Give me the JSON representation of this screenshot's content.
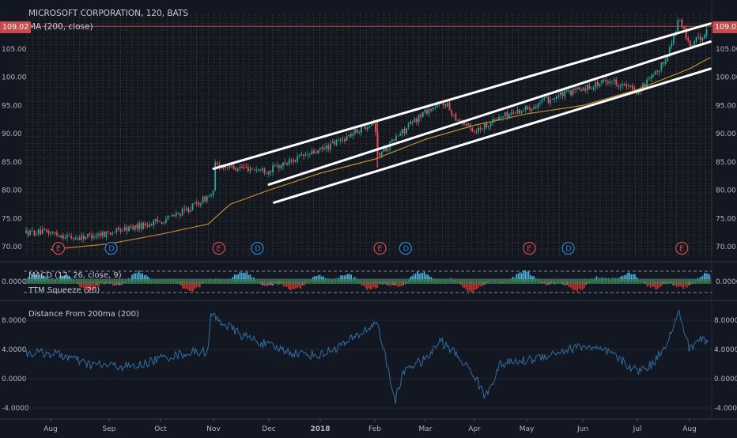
{
  "header": {
    "symbol_title": "MICROSOFT CORPORATION, 120, BATS",
    "ma_label": "MA (200, close)",
    "last_price": "109.02"
  },
  "panels": {
    "macd_label": "MACD (12, 26, close, 9)",
    "ttm_label": "TTM Squeeze (20)",
    "distance_label": "Distance From 200ma (200)"
  },
  "colors": {
    "background": "#131722",
    "grid_dots": "#6b5a1e",
    "candle_up": "#26a69a",
    "candle_down": "#ef5350",
    "ma_line": "#c28a2a",
    "channel_lines": "#ffffff",
    "price_line": "#c94a4a",
    "distance_line": "#2f6fa3",
    "squeeze_green": "#2e8b3a",
    "event_earnings": "#c94a4a",
    "event_dividend": "#2f7fc4"
  },
  "chart_data": [
    {
      "type": "candlestick",
      "title": "MICROSOFT CORPORATION, 120, BATS",
      "x_labels": [
        "Aug",
        "Sep",
        "Oct",
        "Nov",
        "Dec",
        "2018",
        "Feb",
        "Mar",
        "Apr",
        "May",
        "Jun",
        "Jul",
        "Aug"
      ],
      "y_ticks": [
        70.0,
        75.0,
        80.0,
        85.0,
        90.0,
        95.0,
        100.0,
        105.0,
        109.02
      ],
      "y_tick_labels": [
        "70.00",
        "75.00",
        "80.00",
        "85.00",
        "90.00",
        "95.00",
        "100.00",
        "105.00",
        "109.02"
      ],
      "ylim": [
        68,
        111
      ],
      "last_price": 109.02,
      "price_path": {
        "x": [
          0,
          0.4,
          1,
          1.5,
          2,
          2.5,
          3,
          3.01,
          3.5,
          4,
          4.5,
          5,
          5.5,
          6,
          6.05,
          6.5,
          7,
          7.4,
          7.6,
          8,
          8.5,
          9,
          9.5,
          10,
          10.5,
          11,
          11.4,
          11.6,
          11.8,
          12,
          12.4
        ],
        "y": [
          72.5,
          71.5,
          72.5,
          73.5,
          74.5,
          76.5,
          79.5,
          84.5,
          84.0,
          83.5,
          85.5,
          87.0,
          89.5,
          92.5,
          86.0,
          90.0,
          94.0,
          95.5,
          93.0,
          90.5,
          93.0,
          94.5,
          96.5,
          98.0,
          99.5,
          97.5,
          101.0,
          104.5,
          110.5,
          105.5,
          108.5
        ]
      },
      "ma_200": {
        "x": [
          0,
          1,
          2,
          2.9,
          3.3,
          4,
          5,
          6,
          7,
          8,
          9,
          10,
          11,
          12,
          12.4
        ],
        "y": [
          69.5,
          70.5,
          72.2,
          74.0,
          77.5,
          80.0,
          83.0,
          85.5,
          89.0,
          91.5,
          93.5,
          95.0,
          97.8,
          101.5,
          103.5
        ]
      },
      "channel_lines": [
        {
          "x": [
            3.0,
            12.4
          ],
          "y": [
            83.8,
            109.5
          ]
        },
        {
          "x": [
            4.0,
            12.4
          ],
          "y": [
            81.0,
            106.3
          ]
        },
        {
          "x": [
            4.1,
            12.4
          ],
          "y": [
            77.8,
            101.5
          ]
        }
      ],
      "events": [
        {
          "label": "E",
          "x": 0.0
        },
        {
          "label": "D",
          "x": 0.9
        },
        {
          "label": "E",
          "x": 2.95
        },
        {
          "label": "D",
          "x": 3.65
        },
        {
          "label": "E",
          "x": 5.95
        },
        {
          "label": "D",
          "x": 6.45
        },
        {
          "label": "E",
          "x": 8.9
        },
        {
          "label": "D",
          "x": 9.6
        },
        {
          "label": "E",
          "x": 11.7
        }
      ]
    },
    {
      "type": "histogram",
      "title": "MACD (12, 26, close, 9)",
      "y_tick_labels": [
        "0.0000"
      ],
      "x_labels": [
        "Aug",
        "Sep",
        "Oct",
        "Nov",
        "Dec",
        "2018",
        "Feb",
        "Mar",
        "Apr",
        "May",
        "Jun",
        "Jul",
        "Aug"
      ]
    },
    {
      "type": "line",
      "title": "Distance From 200ma (200)",
      "x_labels": [
        "Aug",
        "Sep",
        "Oct",
        "Nov",
        "Dec",
        "2018",
        "Feb",
        "Mar",
        "Apr",
        "May",
        "Jun",
        "Jul",
        "Aug"
      ],
      "y_ticks": [
        -4,
        0,
        4,
        8
      ],
      "y_tick_labels": [
        "-4.0000",
        "0.0000",
        "4.0000",
        "8.0000"
      ],
      "ylim": [
        -5,
        10
      ],
      "x": [
        0,
        0.3,
        0.6,
        1,
        1.5,
        2,
        2.5,
        2.9,
        2.95,
        3.2,
        3.5,
        4,
        4.5,
        5,
        5.5,
        6,
        6.05,
        6.3,
        6.4,
        6.6,
        7,
        7.3,
        7.6,
        8,
        8.2,
        8.5,
        9,
        9.5,
        10,
        10.5,
        11,
        11.3,
        11.6,
        11.8,
        12,
        12.2,
        12.4
      ],
      "y": [
        3.5,
        3.0,
        2.0,
        1.8,
        1.6,
        2.8,
        3.5,
        3.8,
        8.8,
        7.5,
        6.0,
        4.5,
        3.5,
        3.2,
        5.0,
        7.5,
        7.8,
        0.0,
        -3.0,
        1.5,
        2.5,
        5.2,
        3.5,
        0.5,
        -2.5,
        2.0,
        2.5,
        3.5,
        4.5,
        3.5,
        1.0,
        2.0,
        5.5,
        9.0,
        4.0,
        5.5,
        5.0
      ]
    }
  ]
}
